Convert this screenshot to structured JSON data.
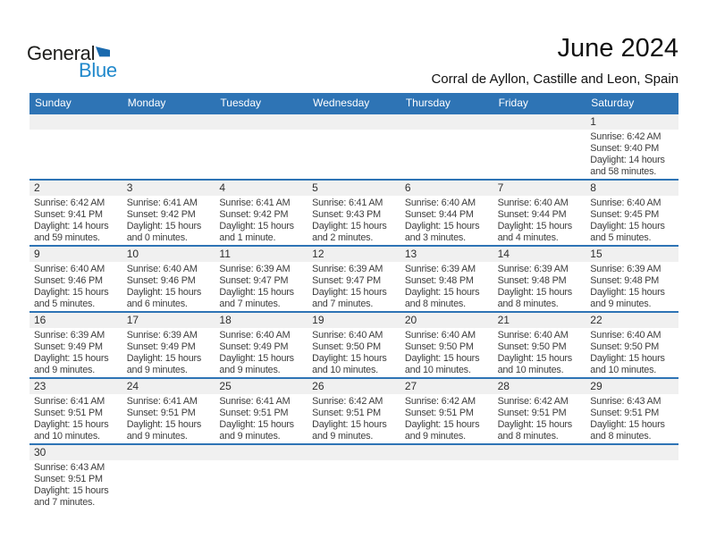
{
  "logo": {
    "part1": "General",
    "part2": "Blue"
  },
  "header": {
    "month_title": "June 2024",
    "location": "Corral de Ayllon, Castille and Leon, Spain"
  },
  "weekday_headers": [
    "Sunday",
    "Monday",
    "Tuesday",
    "Wednesday",
    "Thursday",
    "Friday",
    "Saturday"
  ],
  "colors": {
    "header_bar_blue": "#2E74B5",
    "separator_blue": "#2E74B5",
    "logo_blue": "#2189CC",
    "logo_triangle_blue": "#1A6AAE",
    "day_band_gray": "#F0F0F0",
    "body_text": "#3D3D3D"
  },
  "calendar": {
    "weeks": [
      {
        "days": [
          null,
          null,
          null,
          null,
          null,
          null,
          {
            "day": "1",
            "lines": [
              "Sunrise: 6:42 AM",
              "Sunset: 9:40 PM",
              "Daylight: 14 hours",
              "and 58 minutes."
            ]
          }
        ]
      },
      {
        "days": [
          {
            "day": "2",
            "lines": [
              "Sunrise: 6:42 AM",
              "Sunset: 9:41 PM",
              "Daylight: 14 hours",
              "and 59 minutes."
            ]
          },
          {
            "day": "3",
            "lines": [
              "Sunrise: 6:41 AM",
              "Sunset: 9:42 PM",
              "Daylight: 15 hours",
              "and 0 minutes."
            ]
          },
          {
            "day": "4",
            "lines": [
              "Sunrise: 6:41 AM",
              "Sunset: 9:42 PM",
              "Daylight: 15 hours",
              "and 1 minute."
            ]
          },
          {
            "day": "5",
            "lines": [
              "Sunrise: 6:41 AM",
              "Sunset: 9:43 PM",
              "Daylight: 15 hours",
              "and 2 minutes."
            ]
          },
          {
            "day": "6",
            "lines": [
              "Sunrise: 6:40 AM",
              "Sunset: 9:44 PM",
              "Daylight: 15 hours",
              "and 3 minutes."
            ]
          },
          {
            "day": "7",
            "lines": [
              "Sunrise: 6:40 AM",
              "Sunset: 9:44 PM",
              "Daylight: 15 hours",
              "and 4 minutes."
            ]
          },
          {
            "day": "8",
            "lines": [
              "Sunrise: 6:40 AM",
              "Sunset: 9:45 PM",
              "Daylight: 15 hours",
              "and 5 minutes."
            ]
          }
        ]
      },
      {
        "days": [
          {
            "day": "9",
            "lines": [
              "Sunrise: 6:40 AM",
              "Sunset: 9:46 PM",
              "Daylight: 15 hours",
              "and 5 minutes."
            ]
          },
          {
            "day": "10",
            "lines": [
              "Sunrise: 6:40 AM",
              "Sunset: 9:46 PM",
              "Daylight: 15 hours",
              "and 6 minutes."
            ]
          },
          {
            "day": "11",
            "lines": [
              "Sunrise: 6:39 AM",
              "Sunset: 9:47 PM",
              "Daylight: 15 hours",
              "and 7 minutes."
            ]
          },
          {
            "day": "12",
            "lines": [
              "Sunrise: 6:39 AM",
              "Sunset: 9:47 PM",
              "Daylight: 15 hours",
              "and 7 minutes."
            ]
          },
          {
            "day": "13",
            "lines": [
              "Sunrise: 6:39 AM",
              "Sunset: 9:48 PM",
              "Daylight: 15 hours",
              "and 8 minutes."
            ]
          },
          {
            "day": "14",
            "lines": [
              "Sunrise: 6:39 AM",
              "Sunset: 9:48 PM",
              "Daylight: 15 hours",
              "and 8 minutes."
            ]
          },
          {
            "day": "15",
            "lines": [
              "Sunrise: 6:39 AM",
              "Sunset: 9:48 PM",
              "Daylight: 15 hours",
              "and 9 minutes."
            ]
          }
        ]
      },
      {
        "days": [
          {
            "day": "16",
            "lines": [
              "Sunrise: 6:39 AM",
              "Sunset: 9:49 PM",
              "Daylight: 15 hours",
              "and 9 minutes."
            ]
          },
          {
            "day": "17",
            "lines": [
              "Sunrise: 6:39 AM",
              "Sunset: 9:49 PM",
              "Daylight: 15 hours",
              "and 9 minutes."
            ]
          },
          {
            "day": "18",
            "lines": [
              "Sunrise: 6:40 AM",
              "Sunset: 9:49 PM",
              "Daylight: 15 hours",
              "and 9 minutes."
            ]
          },
          {
            "day": "19",
            "lines": [
              "Sunrise: 6:40 AM",
              "Sunset: 9:50 PM",
              "Daylight: 15 hours",
              "and 10 minutes."
            ]
          },
          {
            "day": "20",
            "lines": [
              "Sunrise: 6:40 AM",
              "Sunset: 9:50 PM",
              "Daylight: 15 hours",
              "and 10 minutes."
            ]
          },
          {
            "day": "21",
            "lines": [
              "Sunrise: 6:40 AM",
              "Sunset: 9:50 PM",
              "Daylight: 15 hours",
              "and 10 minutes."
            ]
          },
          {
            "day": "22",
            "lines": [
              "Sunrise: 6:40 AM",
              "Sunset: 9:50 PM",
              "Daylight: 15 hours",
              "and 10 minutes."
            ]
          }
        ]
      },
      {
        "days": [
          {
            "day": "23",
            "lines": [
              "Sunrise: 6:41 AM",
              "Sunset: 9:51 PM",
              "Daylight: 15 hours",
              "and 10 minutes."
            ]
          },
          {
            "day": "24",
            "lines": [
              "Sunrise: 6:41 AM",
              "Sunset: 9:51 PM",
              "Daylight: 15 hours",
              "and 9 minutes."
            ]
          },
          {
            "day": "25",
            "lines": [
              "Sunrise: 6:41 AM",
              "Sunset: 9:51 PM",
              "Daylight: 15 hours",
              "and 9 minutes."
            ]
          },
          {
            "day": "26",
            "lines": [
              "Sunrise: 6:42 AM",
              "Sunset: 9:51 PM",
              "Daylight: 15 hours",
              "and 9 minutes."
            ]
          },
          {
            "day": "27",
            "lines": [
              "Sunrise: 6:42 AM",
              "Sunset: 9:51 PM",
              "Daylight: 15 hours",
              "and 9 minutes."
            ]
          },
          {
            "day": "28",
            "lines": [
              "Sunrise: 6:42 AM",
              "Sunset: 9:51 PM",
              "Daylight: 15 hours",
              "and 8 minutes."
            ]
          },
          {
            "day": "29",
            "lines": [
              "Sunrise: 6:43 AM",
              "Sunset: 9:51 PM",
              "Daylight: 15 hours",
              "and 8 minutes."
            ]
          }
        ]
      },
      {
        "days": [
          {
            "day": "30",
            "lines": [
              "Sunrise: 6:43 AM",
              "Sunset: 9:51 PM",
              "Daylight: 15 hours",
              "and 7 minutes."
            ]
          },
          null,
          null,
          null,
          null,
          null,
          null
        ]
      }
    ]
  }
}
